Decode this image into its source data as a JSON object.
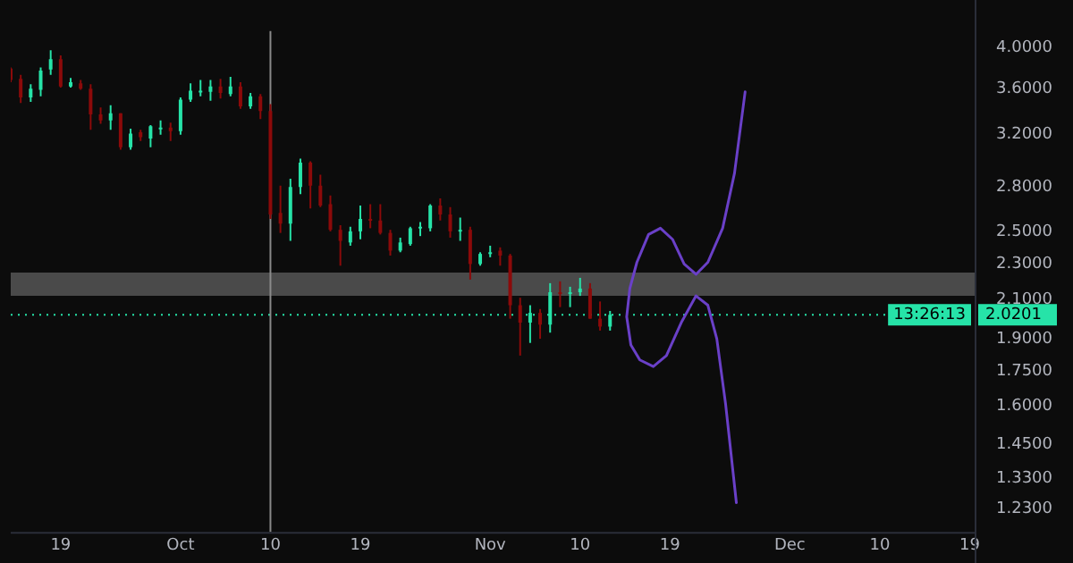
{
  "chart_data": {
    "type": "candlestick",
    "log": "y",
    "grid": false,
    "legend": false,
    "x": [
      "--09-14",
      "--09-15",
      "--09-16",
      "--09-17",
      "--09-18",
      "--09-19",
      "--09-20",
      "--09-21",
      "--09-22",
      "--09-23",
      "--09-24",
      "--09-25",
      "--09-26",
      "--09-27",
      "--09-28",
      "--09-29",
      "--09-30",
      "--10-01",
      "--10-02",
      "--10-03",
      "--10-04",
      "--10-05",
      "--10-06",
      "--10-07",
      "--10-08",
      "--10-09",
      "--10-10",
      "--10-11",
      "--10-12",
      "--10-13",
      "--10-14",
      "--10-15",
      "--10-16",
      "--10-17",
      "--10-18",
      "--10-19",
      "--10-20",
      "--10-21",
      "--10-22",
      "--10-23",
      "--10-24",
      "--10-25",
      "--10-26",
      "--10-27",
      "--10-28",
      "--10-29",
      "--10-30",
      "--10-31",
      "--11-01",
      "--11-02",
      "--11-03",
      "--11-04",
      "--11-05",
      "--11-06",
      "--11-07",
      "--11-08",
      "--11-09",
      "--11-10",
      "--11-11",
      "--11-12",
      "--11-13"
    ],
    "ohlc": [
      [
        3.79,
        3.8,
        3.66,
        3.68
      ],
      [
        3.69,
        3.73,
        3.47,
        3.52
      ],
      [
        3.52,
        3.64,
        3.48,
        3.6
      ],
      [
        3.59,
        3.8,
        3.53,
        3.77
      ],
      [
        3.78,
        3.97,
        3.73,
        3.88
      ],
      [
        3.88,
        3.92,
        3.61,
        3.62
      ],
      [
        3.62,
        3.7,
        3.61,
        3.66
      ],
      [
        3.65,
        3.68,
        3.59,
        3.6
      ],
      [
        3.6,
        3.64,
        3.24,
        3.37
      ],
      [
        3.37,
        3.43,
        3.29,
        3.32
      ],
      [
        3.32,
        3.45,
        3.24,
        3.38
      ],
      [
        3.38,
        3.38,
        3.08,
        3.1
      ],
      [
        3.1,
        3.25,
        3.08,
        3.21
      ],
      [
        3.22,
        3.24,
        3.15,
        3.18
      ],
      [
        3.17,
        3.28,
        3.1,
        3.27
      ],
      [
        3.25,
        3.32,
        3.2,
        3.26
      ],
      [
        3.26,
        3.3,
        3.15,
        3.23
      ],
      [
        3.23,
        3.52,
        3.2,
        3.5
      ],
      [
        3.5,
        3.65,
        3.48,
        3.58
      ],
      [
        3.57,
        3.68,
        3.53,
        3.58
      ],
      [
        3.57,
        3.68,
        3.49,
        3.62
      ],
      [
        3.62,
        3.69,
        3.51,
        3.56
      ],
      [
        3.55,
        3.71,
        3.53,
        3.62
      ],
      [
        3.62,
        3.66,
        3.42,
        3.44
      ],
      [
        3.44,
        3.56,
        3.42,
        3.53
      ],
      [
        3.53,
        3.55,
        3.33,
        3.4
      ],
      [
        3.4,
        3.46,
        2.58,
        2.61
      ],
      [
        2.62,
        2.81,
        2.49,
        2.55
      ],
      [
        2.55,
        2.86,
        2.44,
        2.8
      ],
      [
        2.8,
        3.01,
        2.75,
        2.98
      ],
      [
        2.98,
        2.99,
        2.65,
        2.81
      ],
      [
        2.81,
        2.89,
        2.66,
        2.67
      ],
      [
        2.68,
        2.74,
        2.5,
        2.51
      ],
      [
        2.51,
        2.54,
        2.29,
        2.44
      ],
      [
        2.43,
        2.53,
        2.41,
        2.5
      ],
      [
        2.5,
        2.67,
        2.45,
        2.58
      ],
      [
        2.58,
        2.68,
        2.52,
        2.57
      ],
      [
        2.57,
        2.68,
        2.48,
        2.49
      ],
      [
        2.49,
        2.51,
        2.35,
        2.38
      ],
      [
        2.38,
        2.46,
        2.37,
        2.43
      ],
      [
        2.42,
        2.53,
        2.41,
        2.52
      ],
      [
        2.52,
        2.56,
        2.47,
        2.53
      ],
      [
        2.52,
        2.68,
        2.5,
        2.67
      ],
      [
        2.67,
        2.72,
        2.57,
        2.61
      ],
      [
        2.61,
        2.66,
        2.46,
        2.5
      ],
      [
        2.5,
        2.59,
        2.44,
        2.51
      ],
      [
        2.51,
        2.53,
        2.21,
        2.3
      ],
      [
        2.3,
        2.37,
        2.29,
        2.36
      ],
      [
        2.36,
        2.41,
        2.34,
        2.37
      ],
      [
        2.38,
        2.4,
        2.29,
        2.35
      ],
      [
        2.35,
        2.36,
        2.0,
        2.07
      ],
      [
        2.07,
        2.11,
        1.82,
        1.98
      ],
      [
        1.98,
        2.07,
        1.88,
        2.03
      ],
      [
        2.03,
        2.05,
        1.9,
        1.97
      ],
      [
        1.97,
        2.19,
        1.93,
        2.14
      ],
      [
        2.14,
        2.2,
        2.06,
        2.13
      ],
      [
        2.13,
        2.17,
        2.06,
        2.14
      ],
      [
        2.14,
        2.22,
        2.12,
        2.16
      ],
      [
        2.16,
        2.19,
        2.0,
        2.0
      ],
      [
        2.0,
        2.09,
        1.94,
        1.96
      ],
      [
        1.96,
        2.04,
        1.94,
        2.02
      ]
    ],
    "colors": [
      "#8c0a0a",
      "#8c0a0a",
      "#26e3a8",
      "#26e3a8",
      "#26e3a8",
      "#8c0a0a",
      "#26e3a8",
      "#8c0a0a",
      "#8c0a0a",
      "#8c0a0a",
      "#26e3a8",
      "#8c0a0a",
      "#26e3a8",
      "#8c0a0a",
      "#26e3a8",
      "#26e3a8",
      "#8c0a0a",
      "#26e3a8",
      "#26e3a8",
      "#26e3a8",
      "#26e3a8",
      "#8c0a0a",
      "#26e3a8",
      "#8c0a0a",
      "#26e3a8",
      "#8c0a0a",
      "#8c0a0a",
      "#8c0a0a",
      "#26e3a8",
      "#26e3a8",
      "#8c0a0a",
      "#8c0a0a",
      "#8c0a0a",
      "#8c0a0a",
      "#26e3a8",
      "#26e3a8",
      "#8c0a0a",
      "#8c0a0a",
      "#8c0a0a",
      "#26e3a8",
      "#26e3a8",
      "#26e3a8",
      "#26e3a8",
      "#8c0a0a",
      "#8c0a0a",
      "#26e3a8",
      "#8c0a0a",
      "#26e3a8",
      "#26e3a8",
      "#8c0a0a",
      "#8c0a0a",
      "#8c0a0a",
      "#26e3a8",
      "#8c0a0a",
      "#26e3a8",
      "#8c0a0a",
      "#26e3a8",
      "#26e3a8",
      "#8c0a0a",
      "#8c0a0a",
      "#26e3a8"
    ],
    "series": [
      {
        "type": "line",
        "color": "#6a40c8",
        "x": [
          "--11-26T12:30",
          "--11-25T11:00",
          "--11-24T06:30",
          "--11-22T19:00",
          "--11-21T14:30",
          "--11-20T10:00",
          "--11-19T06:00",
          "--11-18T01:00",
          "--11-16T20:30",
          "--11-15T16:30",
          "--11-14T23:30",
          "--11-14T16:00",
          "--11-15T02:00",
          "--11-15T23:30",
          "--11-17T08:00",
          "--11-18T15:30",
          "--11-20T03:00",
          "--11-21T14:30",
          "--11-22T19:00",
          "--11-23T16:30",
          "--11-24T13:30",
          "--11-25T15:30"
        ],
        "values": [
          3.57,
          2.9,
          2.52,
          2.31,
          2.24,
          2.3,
          2.45,
          2.52,
          2.48,
          2.31,
          2.16,
          2.01,
          1.87,
          1.8,
          1.77,
          1.82,
          1.98,
          2.12,
          2.07,
          1.9,
          1.61,
          1.25
        ]
      }
    ],
    "xlim": [
      "--09-14",
      "--12-19T12:00"
    ],
    "xticks": [
      {
        "value": "--09-19",
        "label": "19"
      },
      {
        "value": "--10-01",
        "label": "Oct"
      },
      {
        "value": "--10-10",
        "label": "10"
      },
      {
        "value": "--10-19",
        "label": "19"
      },
      {
        "value": "--11-01",
        "label": "Nov"
      },
      {
        "value": "--11-10",
        "label": "10"
      },
      {
        "value": "--11-19",
        "label": "19"
      },
      {
        "value": "--12-01",
        "label": "Dec"
      },
      {
        "value": "--12-10",
        "label": "10"
      },
      {
        "value": "--12-19",
        "label": "19"
      }
    ],
    "ylim": [
      1.16,
      4.17
    ],
    "yticks": [
      {
        "value": 1.23,
        "label": "1.2300"
      },
      {
        "value": 1.33,
        "label": "1.3300"
      },
      {
        "value": 1.45,
        "label": "1.4500"
      },
      {
        "value": 1.6,
        "label": "1.6000"
      },
      {
        "value": 1.75,
        "label": "1.7500"
      },
      {
        "value": 1.9,
        "label": "1.9000"
      },
      {
        "value": 2.1,
        "label": "2.1000"
      },
      {
        "value": 2.3,
        "label": "2.3000"
      },
      {
        "value": 2.5,
        "label": "2.5000"
      },
      {
        "value": 2.8,
        "label": "2.8000"
      },
      {
        "value": 3.2,
        "label": "3.2000"
      },
      {
        "value": 3.6,
        "label": "3.6000"
      },
      {
        "value": 4,
        "label": "4.0000"
      }
    ],
    "ref_lines": [
      {
        "axis": "y",
        "value": 2.0201,
        "label": "2.0201",
        "color": "#26e3a8",
        "line_style": "dotted"
      },
      {
        "axis": "x",
        "value": "--10-10",
        "color": "#8a8a8a",
        "line_style": "solid"
      }
    ],
    "bands": [
      {
        "axis": "y",
        "from": 2.12,
        "to": 2.25,
        "color": "#4a4a4a"
      }
    ],
    "annotations": [
      "13:26:13"
    ]
  }
}
